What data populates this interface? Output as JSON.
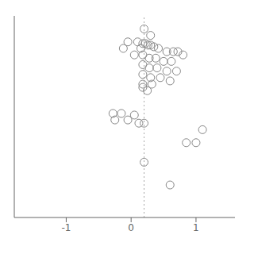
{
  "chart_data": {
    "type": "scatter",
    "x": [
      0.2,
      0.3,
      -0.05,
      0.1,
      0.18,
      0.22,
      0.26,
      0.3,
      0.35,
      -0.12,
      0.15,
      0.42,
      0.55,
      0.65,
      0.72,
      0.8,
      0.05,
      0.18,
      0.28,
      0.38,
      0.5,
      0.62,
      0.18,
      0.28,
      0.4,
      0.55,
      0.7,
      0.18,
      0.3,
      0.45,
      0.6,
      0.18,
      0.32,
      0.18,
      0.25,
      -0.28,
      -0.15,
      0.05,
      -0.25,
      -0.05,
      0.12,
      0.2,
      1.1,
      0.85,
      1.0,
      0.2,
      0.6
    ],
    "values": [
      0.02,
      0.04,
      0.06,
      0.06,
      0.065,
      0.065,
      0.07,
      0.07,
      0.075,
      0.08,
      0.08,
      0.08,
      0.09,
      0.09,
      0.09,
      0.1,
      0.1,
      0.1,
      0.11,
      0.11,
      0.12,
      0.12,
      0.13,
      0.14,
      0.14,
      0.15,
      0.15,
      0.16,
      0.17,
      0.17,
      0.18,
      0.19,
      0.19,
      0.2,
      0.21,
      0.28,
      0.28,
      0.285,
      0.3,
      0.3,
      0.31,
      0.31,
      0.33,
      0.37,
      0.37,
      0.43,
      0.5
    ],
    "color": "#888888",
    "marker": "open_circle",
    "xlim": [
      -1.8,
      1.6
    ],
    "xticks": [
      -1,
      0,
      1
    ],
    "ylim": [
      0.6,
      -0.02
    ],
    "tick_labels": "x",
    "grid": false,
    "reference_line_x": 0.2
  }
}
